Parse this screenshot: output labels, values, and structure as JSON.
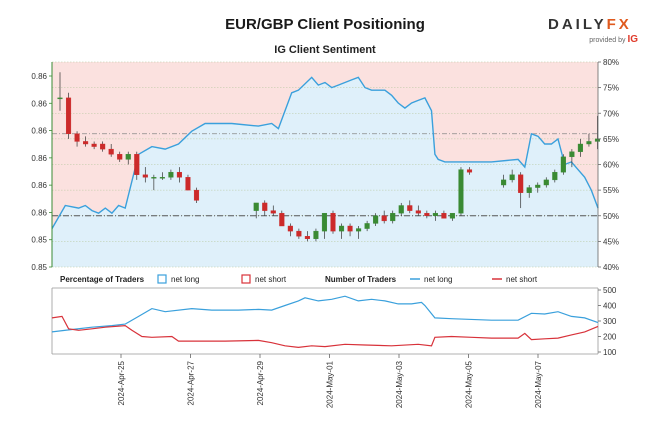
{
  "header": {
    "title": "EUR/GBP Client Positioning",
    "subtitle": "IG Client Sentiment",
    "logo_word": "DAILY",
    "logo_fx": "FX",
    "logo_provided": "provided by",
    "logo_ig": "IG"
  },
  "colors": {
    "long_line": "#3aa0dc",
    "short_line": "#d8323a",
    "long_fill": "#dff0fa",
    "short_fill": "#fbe1df",
    "candle_up": "#3a8a33",
    "candle_down": "#cc2a2a",
    "left_axis": "#3a8a33"
  },
  "legend": {
    "percentage_label": "Percentage of Traders",
    "number_label": "Number of Traders",
    "net_long": "net long",
    "net_short": "net short"
  },
  "chart_data": [
    {
      "type": "candlestick",
      "title": "EUR/GBP Client Positioning",
      "left_axis_ticks": [
        "0.86",
        "0.86",
        "0.86",
        "0.86",
        "0.86",
        "0.86",
        "0.85",
        "0.85"
      ],
      "right_axis_ticks": [
        "80%",
        "75%",
        "70%",
        "65%",
        "60%",
        "55%",
        "50%",
        "45%",
        "40%"
      ],
      "right_axis_range": [
        40,
        80
      ],
      "reference_line_pct": 50,
      "price_reference_line": 0.8574,
      "net_long_pct_series": [
        [
          0,
          47.5
        ],
        [
          2,
          52
        ],
        [
          4,
          51.5
        ],
        [
          5,
          52
        ],
        [
          6,
          51
        ],
        [
          7,
          50.5
        ],
        [
          8,
          51.5
        ],
        [
          9,
          50.5
        ],
        [
          10,
          52
        ],
        [
          11,
          51.5
        ],
        [
          13,
          62
        ],
        [
          15,
          63.5
        ],
        [
          17,
          63
        ],
        [
          19,
          64
        ],
        [
          21,
          66.5
        ],
        [
          23,
          68
        ],
        [
          27,
          68
        ],
        [
          31,
          67.5
        ],
        [
          33,
          68
        ],
        [
          34,
          67
        ],
        [
          36,
          74
        ],
        [
          37,
          74.5
        ],
        [
          39,
          77
        ],
        [
          40,
          75.5
        ],
        [
          41,
          76
        ],
        [
          42,
          75
        ],
        [
          43,
          75.5
        ],
        [
          45,
          76.5
        ],
        [
          46,
          77
        ],
        [
          47,
          75
        ],
        [
          48,
          74.5
        ],
        [
          50,
          74.5
        ],
        [
          51,
          73.5
        ],
        [
          52,
          72
        ],
        [
          53,
          71
        ],
        [
          54,
          72
        ],
        [
          55,
          72.5
        ],
        [
          56,
          73
        ],
        [
          57,
          70.5
        ],
        [
          57.5,
          62
        ],
        [
          58,
          61
        ],
        [
          59,
          60.5
        ],
        [
          66,
          60.5
        ],
        [
          70,
          61
        ],
        [
          71,
          59.5
        ],
        [
          72,
          66
        ],
        [
          73,
          65.5
        ],
        [
          74,
          64
        ],
        [
          75,
          64
        ],
        [
          76,
          65
        ],
        [
          77,
          60
        ],
        [
          78,
          60.5
        ],
        [
          79,
          59
        ],
        [
          80,
          57.5
        ],
        [
          81,
          55
        ],
        [
          82,
          51.5
        ]
      ],
      "candles_ohlc_in_right_axis_units": [
        [
          0,
          73,
          78,
          70.5,
          73
        ],
        [
          1,
          73,
          74,
          65,
          66
        ],
        [
          2,
          66,
          66.5,
          63.5,
          64.5
        ],
        [
          3,
          64.5,
          65.5,
          63.5,
          64
        ],
        [
          4,
          64,
          64.5,
          63,
          63.5
        ],
        [
          5,
          64,
          64.5,
          62.5,
          63
        ],
        [
          6,
          63,
          64,
          61.5,
          62
        ],
        [
          7,
          62,
          62.5,
          60.5,
          61
        ],
        [
          8,
          61,
          62.5,
          60,
          62
        ],
        [
          9,
          62,
          62.5,
          57,
          58
        ],
        [
          10,
          58,
          59.5,
          56.5,
          57.5
        ],
        [
          11,
          57.5,
          58,
          55,
          57.5
        ],
        [
          12,
          57.5,
          58.5,
          57,
          57.5
        ],
        [
          13,
          57.5,
          59,
          57,
          58.5
        ],
        [
          14,
          58.5,
          59.5,
          56.5,
          57.5
        ],
        [
          15,
          57.5,
          58,
          55,
          55
        ],
        [
          16,
          55,
          55.5,
          52.5,
          53
        ],
        [
          23,
          51,
          52.5,
          49.5,
          52.5
        ],
        [
          24,
          52.5,
          53,
          50,
          51
        ],
        [
          25,
          51,
          52,
          50,
          50.5
        ],
        [
          26,
          50.5,
          51,
          48,
          48
        ],
        [
          27,
          48,
          48.5,
          46,
          47
        ],
        [
          28,
          47,
          47.5,
          45.5,
          46
        ],
        [
          29,
          46,
          47,
          45,
          45.5
        ],
        [
          30,
          45.5,
          47.5,
          45,
          47
        ],
        [
          31,
          47,
          50.5,
          45.5,
          50.5
        ],
        [
          32,
          50.5,
          51,
          46.5,
          47
        ],
        [
          33,
          47,
          48.5,
          45.5,
          48
        ],
        [
          34,
          48,
          48.5,
          46,
          47
        ],
        [
          35,
          47,
          48,
          45.5,
          47.5
        ],
        [
          36,
          47.5,
          49,
          47,
          48.5
        ],
        [
          37,
          48.5,
          50.5,
          48,
          50
        ],
        [
          38,
          50,
          51,
          48.5,
          49
        ],
        [
          39,
          49,
          51,
          48.5,
          50.5
        ],
        [
          40,
          50.5,
          52.5,
          50,
          52
        ],
        [
          41,
          52,
          53,
          50.5,
          51
        ],
        [
          42,
          51,
          52,
          50,
          50.5
        ],
        [
          43,
          50.5,
          51,
          49.5,
          50
        ],
        [
          44,
          50,
          51,
          49,
          50.5
        ],
        [
          45,
          50.5,
          51,
          49.5,
          49.5
        ],
        [
          46,
          49.5,
          50.5,
          49,
          50.5
        ],
        [
          47,
          50.5,
          59.5,
          50,
          59
        ],
        [
          48,
          59,
          59.5,
          58,
          58.5
        ],
        [
          52,
          56,
          58,
          55.5,
          57
        ],
        [
          53,
          57,
          59,
          56.5,
          58
        ],
        [
          54,
          58,
          58.5,
          51.5,
          54.5
        ],
        [
          55,
          54.5,
          56,
          53.5,
          55.5
        ],
        [
          56,
          55.5,
          56.5,
          54.5,
          56
        ],
        [
          57,
          56,
          57.5,
          55.5,
          57
        ],
        [
          58,
          57,
          59,
          56.5,
          58.5
        ],
        [
          59,
          58.5,
          62,
          58,
          61.5
        ],
        [
          60,
          61.5,
          63,
          59.5,
          62.5
        ],
        [
          61,
          62.5,
          65,
          61.5,
          64
        ],
        [
          62,
          64,
          66,
          63.5,
          64.5
        ],
        [
          63,
          64.5,
          69.5,
          63,
          65
        ]
      ],
      "x_tick_labels": [
        "2024-Apr-25",
        "2024-Apr-27",
        "2024-Apr-29",
        "2024-May-01",
        "2024-May-03",
        "2024-May-05",
        "2024-May-07"
      ]
    },
    {
      "type": "line",
      "title": "Number of Traders",
      "y_ticks": [
        "500",
        "400",
        "300",
        "200",
        "100"
      ],
      "ylim": [
        100,
        500
      ],
      "series": [
        {
          "name": "net long",
          "points": [
            [
              0,
              230
            ],
            [
              3,
              245
            ],
            [
              6,
              260
            ],
            [
              9,
              270
            ],
            [
              11,
              280
            ],
            [
              13,
              330
            ],
            [
              15,
              380
            ],
            [
              17,
              360
            ],
            [
              21,
              380
            ],
            [
              24,
              370
            ],
            [
              28,
              370
            ],
            [
              31,
              375
            ],
            [
              33,
              370
            ],
            [
              35,
              400
            ],
            [
              37,
              430
            ],
            [
              38,
              450
            ],
            [
              40,
              430
            ],
            [
              42,
              440
            ],
            [
              44,
              460
            ],
            [
              46,
              430
            ],
            [
              48,
              440
            ],
            [
              50,
              430
            ],
            [
              52,
              410
            ],
            [
              54,
              410
            ],
            [
              55.5,
              420
            ],
            [
              56,
              400
            ],
            [
              57.5,
              320
            ],
            [
              60,
              315
            ],
            [
              66,
              305
            ],
            [
              70,
              305
            ],
            [
              72,
              350
            ],
            [
              74,
              345
            ],
            [
              76,
              360
            ],
            [
              78,
              330
            ],
            [
              80,
              320
            ],
            [
              82,
              290
            ]
          ]
        },
        {
          "name": "net short",
          "points": [
            [
              0,
              320
            ],
            [
              1.5,
              330
            ],
            [
              2.5,
              250
            ],
            [
              4,
              240
            ],
            [
              6,
              250
            ],
            [
              8,
              260
            ],
            [
              11,
              270
            ],
            [
              12,
              240
            ],
            [
              13.5,
              200
            ],
            [
              15,
              195
            ],
            [
              18,
              200
            ],
            [
              19,
              170
            ],
            [
              26,
              170
            ],
            [
              31,
              175
            ],
            [
              33,
              160
            ],
            [
              35,
              140
            ],
            [
              37,
              130
            ],
            [
              39,
              140
            ],
            [
              41,
              135
            ],
            [
              44,
              150
            ],
            [
              47,
              145
            ],
            [
              51,
              140
            ],
            [
              55,
              150
            ],
            [
              57,
              140
            ],
            [
              57.5,
              195
            ],
            [
              60,
              200
            ],
            [
              63,
              195
            ],
            [
              66,
              190
            ],
            [
              70,
              190
            ],
            [
              71,
              220
            ],
            [
              72,
              180
            ],
            [
              74,
              185
            ],
            [
              76,
              190
            ],
            [
              78,
              210
            ],
            [
              80,
              230
            ],
            [
              82,
              265
            ]
          ]
        }
      ]
    }
  ]
}
